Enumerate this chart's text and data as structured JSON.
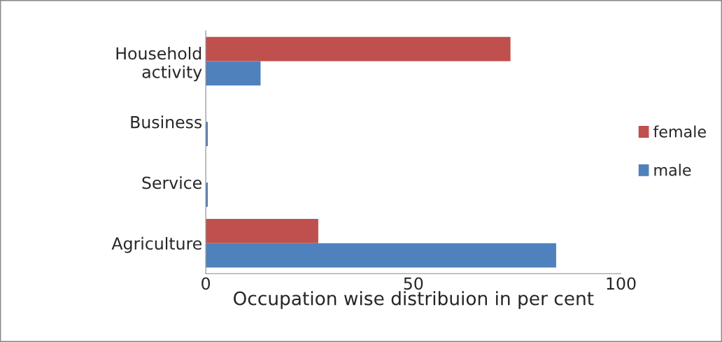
{
  "chart_data": {
    "type": "bar",
    "orientation": "horizontal",
    "xlabel": "Occupation wise distribuion in per cent",
    "categories": [
      "Household\nactivity",
      "Business",
      "Service",
      "Agriculture"
    ],
    "series": [
      {
        "name": "female",
        "color": "#c0504d",
        "values": [
          73.4,
          null,
          null,
          27.1
        ]
      },
      {
        "name": "male",
        "color": "#4f81bd",
        "values": [
          13.2,
          0.5,
          0.5,
          84.4
        ]
      }
    ],
    "xlim": [
      0,
      100
    ],
    "xticks": [
      0,
      50,
      100
    ],
    "grid": false,
    "legend": "right"
  }
}
